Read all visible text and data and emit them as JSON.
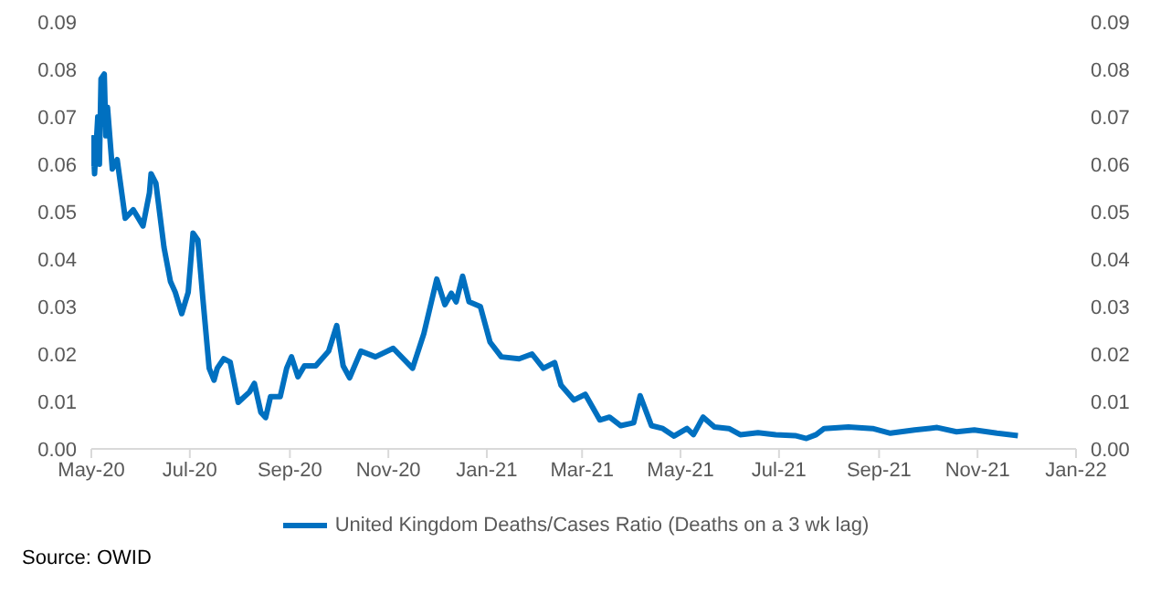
{
  "chart_data": {
    "type": "line",
    "x": [
      "2020-05-01",
      "2020-05-02",
      "2020-05-03",
      "2020-05-05",
      "2020-05-06",
      "2020-05-07",
      "2020-05-09",
      "2020-05-10",
      "2020-05-11",
      "2020-05-14",
      "2020-05-17",
      "2020-05-22",
      "2020-05-27",
      "2020-06-02",
      "2020-06-06",
      "2020-06-07",
      "2020-06-10",
      "2020-06-15",
      "2020-06-19",
      "2020-06-22",
      "2020-06-26",
      "2020-06-30",
      "2020-07-03",
      "2020-07-06",
      "2020-07-09",
      "2020-07-13",
      "2020-07-16",
      "2020-07-18",
      "2020-07-22",
      "2020-07-26",
      "2020-07-31",
      "2020-08-07",
      "2020-08-10",
      "2020-08-14",
      "2020-08-17",
      "2020-08-20",
      "2020-08-26",
      "2020-08-30",
      "2020-09-02",
      "2020-09-06",
      "2020-09-10",
      "2020-09-17",
      "2020-09-25",
      "2020-09-30",
      "2020-10-04",
      "2020-10-08",
      "2020-10-15",
      "2020-10-24",
      "2020-11-04",
      "2020-11-16",
      "2020-11-23",
      "2020-12-01",
      "2020-12-06",
      "2020-12-10",
      "2020-12-13",
      "2020-12-17",
      "2020-12-21",
      "2020-12-28",
      "2021-01-03",
      "2021-01-10",
      "2021-01-21",
      "2021-01-29",
      "2021-02-05",
      "2021-02-12",
      "2021-02-16",
      "2021-02-24",
      "2021-03-03",
      "2021-03-12",
      "2021-03-18",
      "2021-03-25",
      "2021-04-02",
      "2021-04-06",
      "2021-04-13",
      "2021-04-20",
      "2021-04-27",
      "2021-05-05",
      "2021-05-09",
      "2021-05-15",
      "2021-05-22",
      "2021-05-31",
      "2021-06-07",
      "2021-06-18",
      "2021-06-29",
      "2021-07-11",
      "2021-07-18",
      "2021-07-24",
      "2021-07-29",
      "2021-08-13",
      "2021-08-28",
      "2021-09-08",
      "2021-09-23",
      "2021-10-07",
      "2021-10-19",
      "2021-10-30",
      "2021-11-13",
      "2021-11-26"
    ],
    "series": [
      {
        "name": "United Kingdom Deaths/Cases Ratio (Deaths on a 3 wk lag)",
        "color": "#0070c0",
        "values": [
          0.0595,
          0.0656,
          0.058,
          0.07,
          0.06,
          0.078,
          0.079,
          0.066,
          0.072,
          0.059,
          0.061,
          0.0486,
          0.0504,
          0.047,
          0.054,
          0.058,
          0.056,
          0.0425,
          0.0353,
          0.033,
          0.0285,
          0.033,
          0.0455,
          0.044,
          0.032,
          0.017,
          0.0145,
          0.017,
          0.019,
          0.0183,
          0.0098,
          0.012,
          0.0138,
          0.0077,
          0.0066,
          0.011,
          0.011,
          0.017,
          0.0194,
          0.0152,
          0.0175,
          0.0175,
          0.0206,
          0.026,
          0.0175,
          0.015,
          0.0206,
          0.0194,
          0.0212,
          0.017,
          0.0243,
          0.0358,
          0.0304,
          0.0328,
          0.031,
          0.0364,
          0.031,
          0.03,
          0.0225,
          0.0194,
          0.019,
          0.02,
          0.017,
          0.0182,
          0.0134,
          0.0103,
          0.0115,
          0.0061,
          0.0067,
          0.0049,
          0.0055,
          0.0112,
          0.0049,
          0.0043,
          0.0027,
          0.0043,
          0.003,
          0.0067,
          0.0046,
          0.0043,
          0.003,
          0.0034,
          0.003,
          0.0028,
          0.0022,
          0.003,
          0.0043,
          0.0046,
          0.0043,
          0.0033,
          0.004,
          0.0045,
          0.0036,
          0.004,
          0.0033,
          0.0028
        ]
      }
    ],
    "xlim": [
      "2020-05-01",
      "2022-01-01"
    ],
    "xticks": [
      {
        "value": "2020-05-01",
        "label": "May-20"
      },
      {
        "value": "2020-07-01",
        "label": "Jul-20"
      },
      {
        "value": "2020-09-01",
        "label": "Sep-20"
      },
      {
        "value": "2020-11-01",
        "label": "Nov-20"
      },
      {
        "value": "2021-01-01",
        "label": "Jan-21"
      },
      {
        "value": "2021-03-01",
        "label": "Mar-21"
      },
      {
        "value": "2021-05-01",
        "label": "May-21"
      },
      {
        "value": "2021-07-01",
        "label": "Jul-21"
      },
      {
        "value": "2021-09-01",
        "label": "Sep-21"
      },
      {
        "value": "2021-11-01",
        "label": "Nov-21"
      },
      {
        "value": "2022-01-01",
        "label": "Jan-22"
      }
    ],
    "ylim": [
      0,
      0.09
    ],
    "yticks": [
      {
        "value": 0,
        "label": "0.00"
      },
      {
        "value": 0.01,
        "label": "0.01"
      },
      {
        "value": 0.02,
        "label": "0.02"
      },
      {
        "value": 0.03,
        "label": "0.03"
      },
      {
        "value": 0.04,
        "label": "0.04"
      },
      {
        "value": 0.05,
        "label": "0.05"
      },
      {
        "value": 0.06,
        "label": "0.06"
      },
      {
        "value": 0.07,
        "label": "0.07"
      },
      {
        "value": 0.08,
        "label": "0.08"
      },
      {
        "value": 0.09,
        "label": "0.09"
      }
    ],
    "y2lim": [
      0,
      0.09
    ],
    "y2ticks": [
      {
        "value": 0,
        "label": "0.00"
      },
      {
        "value": 0.01,
        "label": "0.01"
      },
      {
        "value": 0.02,
        "label": "0.02"
      },
      {
        "value": 0.03,
        "label": "0.03"
      },
      {
        "value": 0.04,
        "label": "0.04"
      },
      {
        "value": 0.05,
        "label": "0.05"
      },
      {
        "value": 0.06,
        "label": "0.06"
      },
      {
        "value": 0.07,
        "label": "0.07"
      },
      {
        "value": 0.08,
        "label": "0.08"
      },
      {
        "value": 0.09,
        "label": "0.09"
      }
    ],
    "grid": false,
    "legend": "bottom",
    "marker": "none",
    "line_style": "solid",
    "annotations": [
      "Source: OWID"
    ]
  }
}
